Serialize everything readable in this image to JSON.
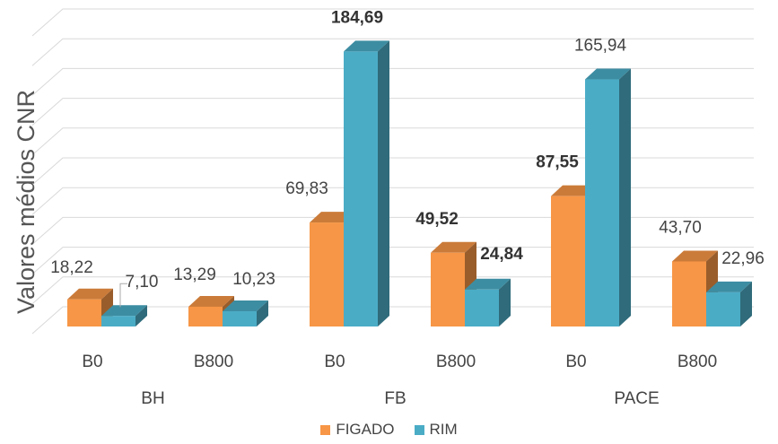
{
  "chart_data": {
    "type": "bar",
    "ylabel": "Valores médios CNR",
    "xlabel": "",
    "ylim": [
      0,
      200
    ],
    "grid": true,
    "legend_position": "bottom",
    "categories": [
      "B0",
      "B800",
      "B0",
      "B800",
      "B0",
      "B800"
    ],
    "groups": [
      {
        "label": "BH",
        "span": [
          0,
          1
        ]
      },
      {
        "label": "FB",
        "span": [
          2,
          3
        ]
      },
      {
        "label": "PACE",
        "span": [
          4,
          5
        ]
      }
    ],
    "series": [
      {
        "name": "FIGADO",
        "color": "#F79646",
        "values": [
          18.22,
          13.29,
          69.83,
          49.52,
          87.55,
          43.7
        ],
        "labels": [
          "18,22",
          "13,29",
          "69,83",
          "49,52",
          "87,55",
          "43,70"
        ],
        "bold": [
          false,
          false,
          false,
          true,
          true,
          false
        ]
      },
      {
        "name": "RIM",
        "color": "#4BACC6",
        "values": [
          7.1,
          10.23,
          184.69,
          24.84,
          165.94,
          22.96
        ],
        "labels": [
          "7,10",
          "10,23",
          "184,69",
          "24,84",
          "165,94",
          "22,96"
        ],
        "bold": [
          false,
          false,
          true,
          true,
          false,
          false
        ]
      }
    ]
  }
}
